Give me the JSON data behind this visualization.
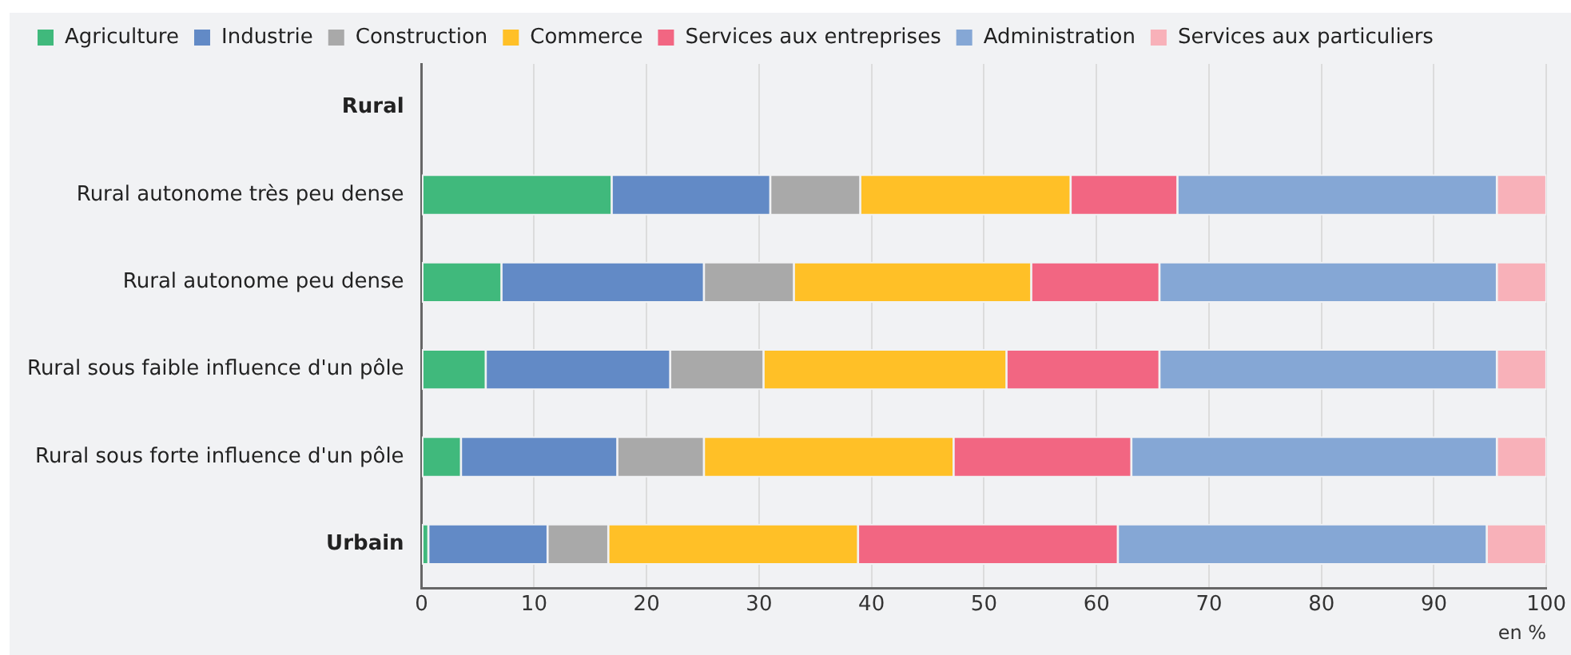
{
  "chart_data": {
    "type": "bar",
    "orientation": "horizontal",
    "stacked": true,
    "categories": [
      "Rural",
      "Rural autonome très peu dense",
      "Rural autonome peu dense",
      "Rural sous faible influence d'un pôle",
      "Rural sous forte influence d'un pôle",
      "Urbain"
    ],
    "series": [
      {
        "name": "Agriculture",
        "color": "#40b97c",
        "values": [
          null,
          16.9,
          7.1,
          5.7,
          3.5,
          0.6
        ]
      },
      {
        "name": "Industrie",
        "color": "#628ac6",
        "values": [
          null,
          14.1,
          18.0,
          16.4,
          13.9,
          10.6
        ]
      },
      {
        "name": "Construction",
        "color": "#a9a9a9",
        "values": [
          null,
          8.0,
          8.0,
          8.3,
          7.7,
          5.4
        ]
      },
      {
        "name": "Commerce",
        "color": "#ffc027",
        "values": [
          null,
          18.7,
          21.1,
          21.6,
          22.2,
          22.2
        ]
      },
      {
        "name": "Services aux entreprises",
        "color": "#f26682",
        "values": [
          null,
          9.5,
          11.4,
          13.6,
          15.8,
          23.1
        ]
      },
      {
        "name": "Administration",
        "color": "#85a7d5",
        "values": [
          null,
          28.4,
          30.0,
          30.0,
          32.5,
          32.8
        ]
      },
      {
        "name": "Services aux particuliers",
        "color": "#f8b1b9",
        "values": [
          null,
          4.4,
          4.4,
          4.4,
          4.4,
          5.3
        ]
      }
    ],
    "xlim": [
      0,
      100
    ],
    "xticks": [
      0,
      10,
      20,
      30,
      40,
      50,
      60,
      70,
      80,
      90,
      100
    ],
    "xlabel": "en %",
    "grid": "x",
    "legend": "top"
  }
}
